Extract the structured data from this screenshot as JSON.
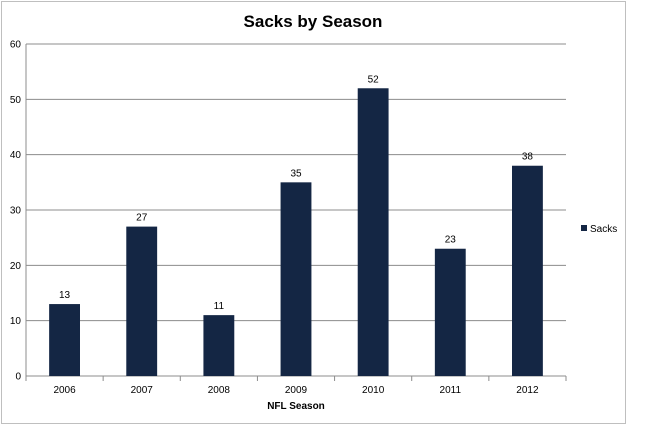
{
  "chart_data": {
    "type": "bar",
    "title": "Sacks by Season",
    "xlabel": "NFL Season",
    "ylabel": "",
    "categories": [
      "2006",
      "2007",
      "2008",
      "2009",
      "2010",
      "2011",
      "2012"
    ],
    "series": [
      {
        "name": "Sacks",
        "values": [
          13,
          27,
          11,
          35,
          52,
          23,
          38
        ]
      }
    ],
    "ylim": [
      0,
      60
    ],
    "yticks": [
      0,
      10,
      20,
      30,
      40,
      50,
      60
    ],
    "grid": true,
    "legend_position": "right",
    "data_labels": true,
    "bar_color": "#142644"
  }
}
